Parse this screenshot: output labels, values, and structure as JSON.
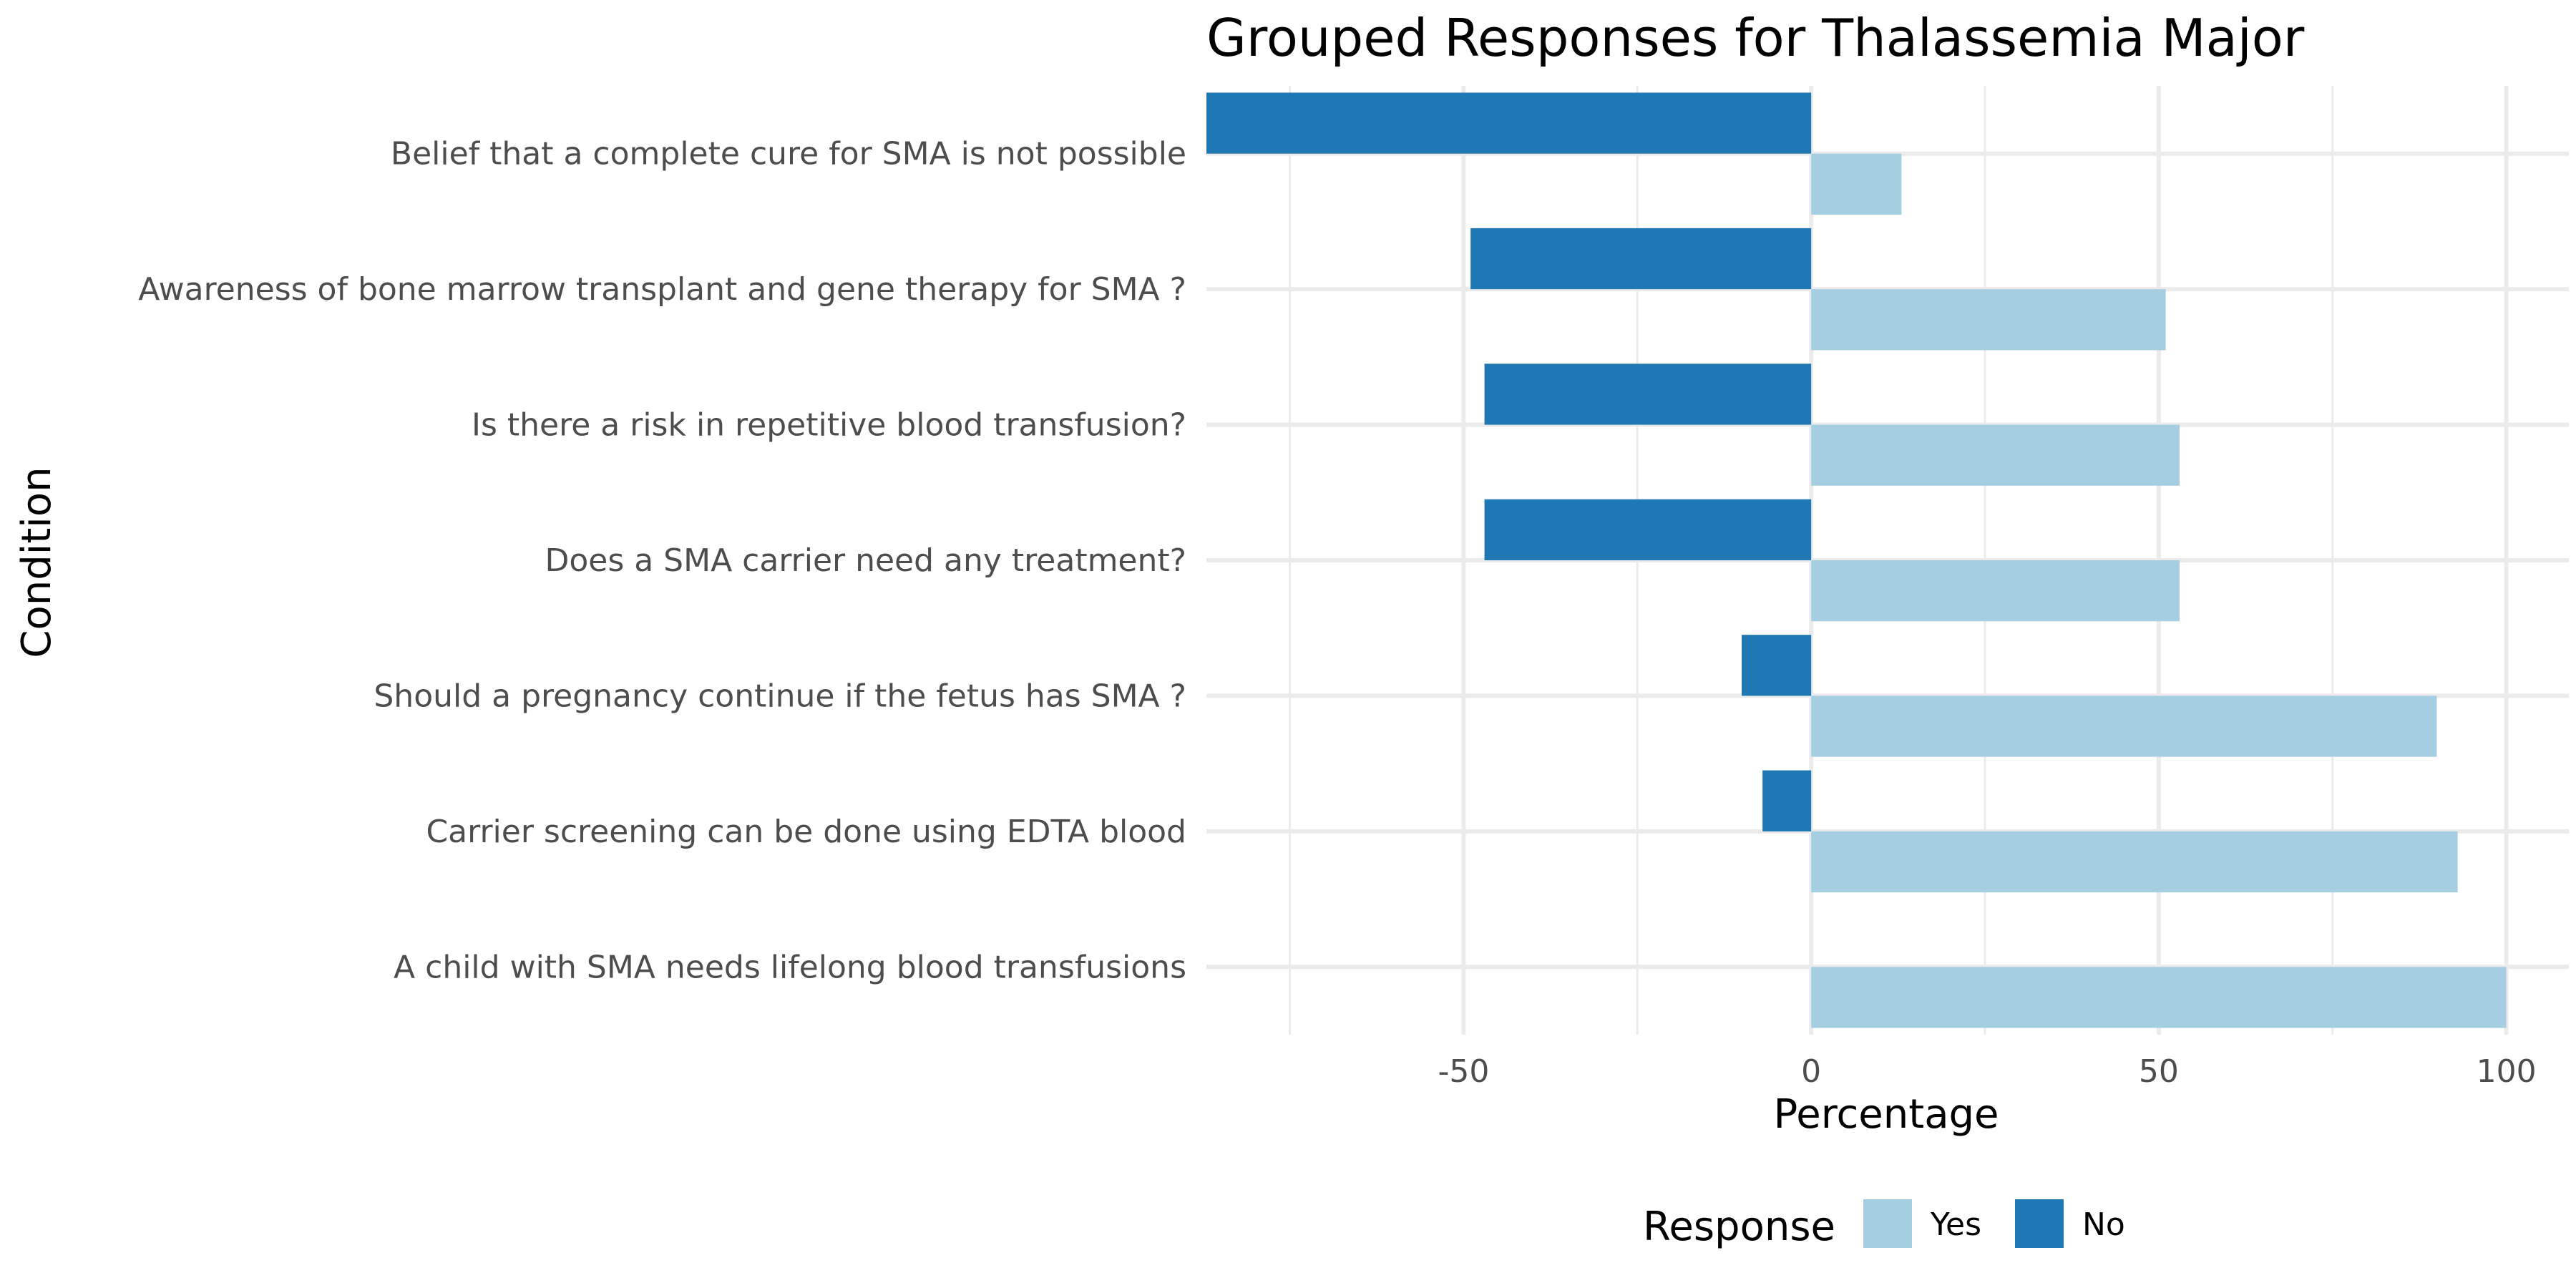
{
  "chart_data": {
    "type": "bar",
    "orientation": "horizontal",
    "title": "Grouped Responses for Thalassemia Major",
    "xlabel": "Percentage",
    "ylabel": "Condition",
    "xlim": [
      -87,
      109
    ],
    "xticks": [
      -50,
      0,
      50,
      100
    ],
    "xtick_labels": [
      "-50",
      "0",
      "50",
      "100"
    ],
    "grid": true,
    "legend_position": "bottom",
    "legend_title": "Response",
    "categories": [
      "Belief that a complete cure for SMA  is not possible",
      "Awareness of bone marrow transplant and gene therapy for SMA ?",
      "Is there a risk in repetitive blood transfusion?",
      "Does a SMA carrier need any treatment?",
      "Should a pregnancy continue if the fetus has SMA ?",
      "Carrier screening can be done using EDTA blood",
      "A child with SMA  needs lifelong blood transfusions"
    ],
    "series": [
      {
        "name": "Yes",
        "color": "#a6cee3",
        "values": [
          13,
          51,
          53,
          53,
          90,
          93,
          100
        ]
      },
      {
        "name": "No",
        "color": "#1f78b4",
        "values": [
          -87,
          -49,
          -47,
          -47,
          -10,
          -7,
          0
        ]
      }
    ]
  }
}
